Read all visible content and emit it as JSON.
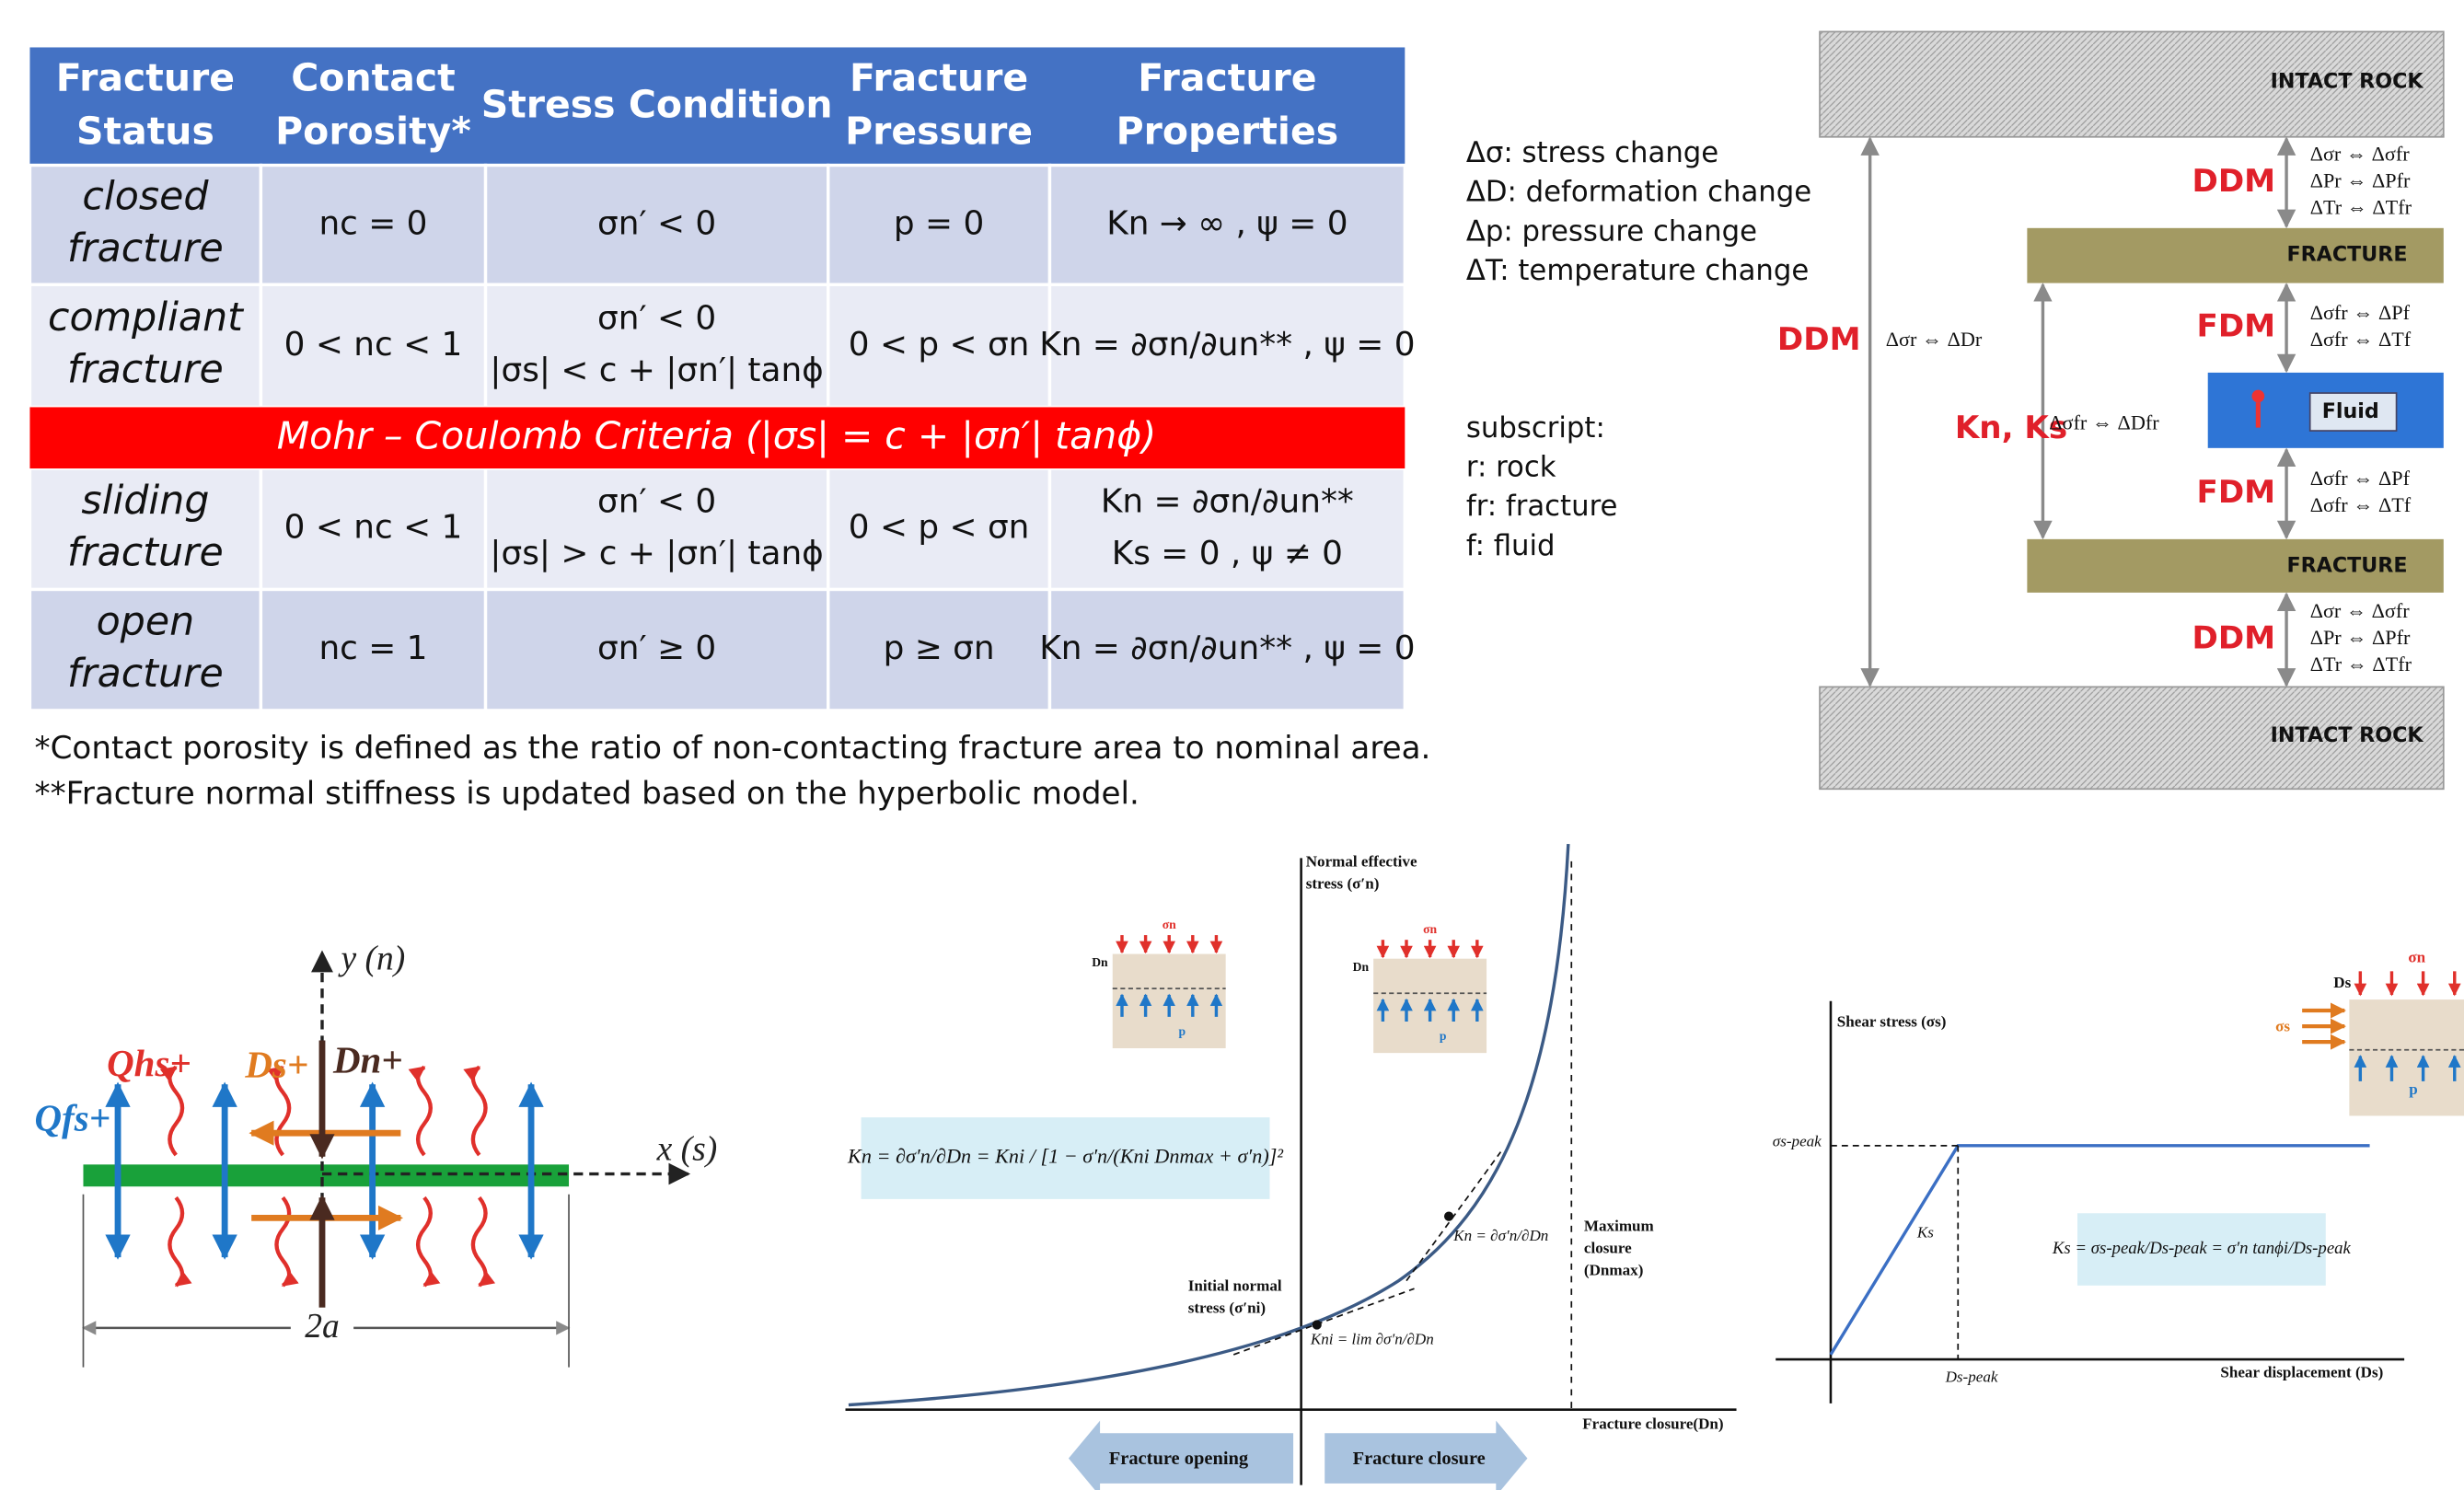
{
  "table": {
    "headers": [
      [
        "Fracture",
        "Status"
      ],
      [
        "Contact",
        "Porosity*"
      ],
      [
        "Stress Condition"
      ],
      [
        "Fracture",
        "Pressure"
      ],
      [
        "Fracture",
        "Properties"
      ]
    ],
    "rows": [
      [
        [
          "closed",
          "fracture"
        ],
        [
          "nc = 0"
        ],
        [
          "σn′ < 0"
        ],
        [
          "p = 0"
        ],
        [
          "Kn → ∞ , ψ = 0"
        ]
      ],
      [
        [
          "compliant",
          "fracture"
        ],
        [
          "0 < nc < 1"
        ],
        [
          "σn′ < 0",
          "|σs| < c + |σn′| tanϕ"
        ],
        [
          "0 < p < σn"
        ],
        [
          "Kn = ∂σn/∂un** , ψ = 0"
        ]
      ],
      [
        [
          "sliding",
          "fracture"
        ],
        [
          "0 < nc < 1"
        ],
        [
          "σn′ < 0",
          "|σs| > c + |σn′| tanϕ"
        ],
        [
          "0 < p < σn"
        ],
        [
          "Kn = ∂σn/∂un**",
          "Ks = 0 , ψ ≠ 0"
        ]
      ],
      [
        [
          "open",
          "fracture"
        ],
        [
          "nc = 1"
        ],
        [
          "σn′ ≥ 0"
        ],
        [
          "p ≥ σn"
        ],
        [
          "Kn = ∂σn/∂un** , ψ = 0"
        ]
      ]
    ],
    "criteria": "Mohr – Coulomb Criteria (|σs| = c + |σn′| tanϕ)"
  },
  "footnotes": [
    "*Contact porosity is defined as the ratio of non-contacting fracture area to nominal area.",
    "**Fracture normal stiffness is updated based on the hyperbolic model."
  ],
  "legend": {
    "definitions": [
      "Δσ: stress change",
      "ΔD: deformation change",
      "Δp: pressure change",
      "ΔT: temperature change"
    ],
    "subscript_heading": "subscript:",
    "subscripts": [
      "r: rock",
      "fr: fracture",
      "f: fluid"
    ]
  },
  "layers": {
    "intact_rock_top": "INTACT ROCK",
    "fracture_top": "FRACTURE",
    "fluid": "Fluid",
    "fracture_bottom": "FRACTURE",
    "intact_rock_bottom": "INTACT ROCK",
    "outer_method": "DDM",
    "outer_relation": "Δσr ⇔ ΔDr",
    "inner_method": "Kn, Ks",
    "inner_relation": "Δσfr ⇔ ΔDfr",
    "zones": [
      {
        "method": "DDM",
        "relations": [
          "Δσr ⇔ Δσfr",
          "ΔPr ⇔ ΔPfr",
          "ΔTr ⇔ ΔTfr"
        ]
      },
      {
        "method": "FDM",
        "relations": [
          "Δσfr ⇔ ΔPf",
          "Δσfr ⇔ ΔTf"
        ]
      },
      {
        "method": "FDM",
        "relations": [
          "Δσfr ⇔ ΔPf",
          "Δσfr ⇔ ΔTf"
        ]
      },
      {
        "method": "DDM",
        "relations": [
          "Δσr ⇔ Δσfr",
          "ΔPr ⇔ ΔPfr",
          "ΔTr ⇔ ΔTfr"
        ]
      }
    ]
  },
  "sketch": {
    "y_axis": "y (n)",
    "x_axis": "x (s)",
    "width": "2a",
    "q_fs": "Qfs+",
    "q_hs": "Qhs+",
    "d_s": "Ds+",
    "d_n": "Dn+"
  },
  "normal_chart": {
    "y_axis": [
      "Normal effective",
      "stress (σ′n)"
    ],
    "x_axis": "Fracture closure(Dn)",
    "max_closure": [
      "Maximum",
      "closure",
      "(Dnmax)"
    ],
    "initial": [
      "Initial normal",
      "stress (σ′ni)"
    ],
    "formula": "Kn = ∂σ′n/∂Dn = Kni / [1 − σ′n/(Kni Dnmax + σ′n)]²",
    "tangent": "Kn = ∂σ′n/∂Dn",
    "limit": "Kni = lim ∂σ′n/∂Dn",
    "opening": "Fracture opening",
    "closure": "Fracture closure",
    "insets": [
      {
        "load": "σn",
        "disp": "Dn",
        "pressure": "p"
      },
      {
        "load": "σn",
        "disp": "Dn",
        "pressure": "p"
      }
    ]
  },
  "shear_chart": {
    "y_axis": "Shear stress (σs)",
    "x_axis": "Shear displacement (Ds)",
    "peak_stress": "σs-peak",
    "peak_disp": "Ds-peak",
    "slope": "Ks",
    "formula": "Ks = σs-peak/Ds-peak = σ′n tanϕi/Ds-peak",
    "inset": {
      "load": "σn",
      "shear": "σs",
      "disp": "Ds",
      "pressure": "p"
    }
  }
}
